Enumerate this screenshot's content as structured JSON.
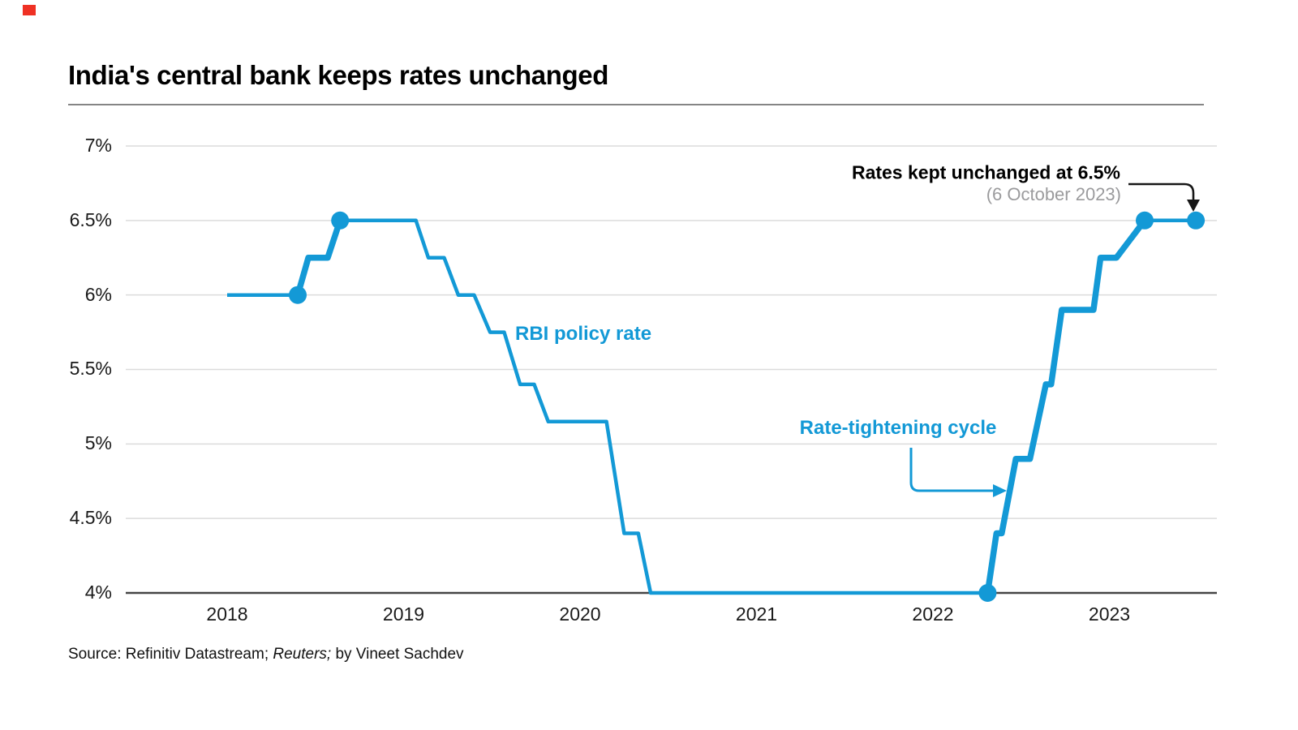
{
  "title": "India's central bank keeps rates unchanged",
  "annotations": {
    "series_label": "RBI policy rate",
    "cycle_label": "Rate-tightening cycle",
    "callout_bold": "Rates kept unchanged at 6.5%",
    "callout_sub": "(6 October 2023)"
  },
  "source": {
    "prefix": "Source: Refinitiv Datastream; ",
    "italic": "Reuters;",
    "suffix": " by Vineet Sachdev"
  },
  "colors": {
    "line": "#1399d6",
    "grid": "#dcdcdc",
    "axis": "#454545",
    "callout_arrow": "#161616",
    "red_mark": "#ef3124"
  },
  "chart_data": {
    "type": "line",
    "title": "India's central bank keeps rates unchanged",
    "legend_position": "inline-annotation",
    "grid": "horizontal",
    "x_range": [
      2018.0,
      2023.6
    ],
    "y_range": [
      4,
      7
    ],
    "x_ticks": [
      {
        "v": 2018,
        "label": "2018"
      },
      {
        "v": 2019,
        "label": "2019"
      },
      {
        "v": 2020,
        "label": "2020"
      },
      {
        "v": 2021,
        "label": "2021"
      },
      {
        "v": 2022,
        "label": "2022"
      },
      {
        "v": 2023,
        "label": "2023"
      }
    ],
    "y_ticks": [
      {
        "v": 7,
        "label": "7%"
      },
      {
        "v": 6.5,
        "label": "6.5%"
      },
      {
        "v": 6,
        "label": "6%"
      },
      {
        "v": 5.5,
        "label": "5.5%"
      },
      {
        "v": 5,
        "label": "5%"
      },
      {
        "v": 4.5,
        "label": "4.5%"
      },
      {
        "v": 4,
        "label": "4%"
      }
    ],
    "series": [
      {
        "name": "RBI policy rate",
        "points": [
          [
            2018.0,
            6.0
          ],
          [
            2018.4,
            6.0
          ],
          [
            2018.46,
            6.25
          ],
          [
            2018.57,
            6.25
          ],
          [
            2018.64,
            6.5
          ],
          [
            2019.07,
            6.5
          ],
          [
            2019.14,
            6.25
          ],
          [
            2019.23,
            6.25
          ],
          [
            2019.31,
            6.0
          ],
          [
            2019.4,
            6.0
          ],
          [
            2019.49,
            5.75
          ],
          [
            2019.57,
            5.75
          ],
          [
            2019.66,
            5.4
          ],
          [
            2019.74,
            5.4
          ],
          [
            2019.82,
            5.15
          ],
          [
            2020.15,
            5.15
          ],
          [
            2020.25,
            4.4
          ],
          [
            2020.33,
            4.4
          ],
          [
            2020.4,
            4.0
          ],
          [
            2022.31,
            4.0
          ],
          [
            2022.36,
            4.4
          ],
          [
            2022.39,
            4.4
          ],
          [
            2022.47,
            4.9
          ],
          [
            2022.55,
            4.9
          ],
          [
            2022.64,
            5.4
          ],
          [
            2022.67,
            5.4
          ],
          [
            2022.73,
            5.9
          ],
          [
            2022.91,
            5.9
          ],
          [
            2022.95,
            6.25
          ],
          [
            2023.04,
            6.25
          ],
          [
            2023.2,
            6.5
          ],
          [
            2023.49,
            6.5
          ]
        ]
      }
    ],
    "emphasis_ranges": [
      [
        2018.4,
        2018.64
      ],
      [
        2022.31,
        2023.2
      ]
    ],
    "markers": [
      [
        2018.4,
        6.0
      ],
      [
        2018.64,
        6.5
      ],
      [
        2022.31,
        4.0
      ],
      [
        2023.2,
        6.5
      ],
      [
        2023.49,
        6.5
      ]
    ]
  }
}
